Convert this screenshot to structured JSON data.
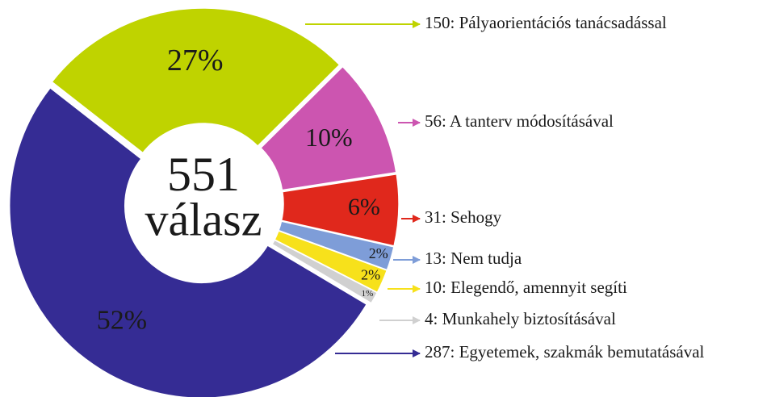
{
  "chart_data": {
    "type": "donut",
    "categories": [
      "150: Pályaorientációs tanácsadással",
      "56: A tanterv módosításával",
      "31: Sehogy",
      "13: Nem tudja",
      "10: Elegendő, amennyit segíti",
      "4: Munkahely biztosításával",
      "287: Egyetemek, szakmák bemutatásával"
    ],
    "values": [
      27,
      10,
      6,
      2,
      2,
      1,
      52
    ],
    "value_labels": [
      "27%",
      "10%",
      "6%",
      "2%",
      "2%",
      "1%",
      "52%"
    ],
    "colors": [
      "#bfd300",
      "#cc55b0",
      "#e0281c",
      "#7e9dd8",
      "#f7e11b",
      "#d0d0d0",
      "#352c94"
    ],
    "total": 551,
    "total_label": "válasz"
  }
}
